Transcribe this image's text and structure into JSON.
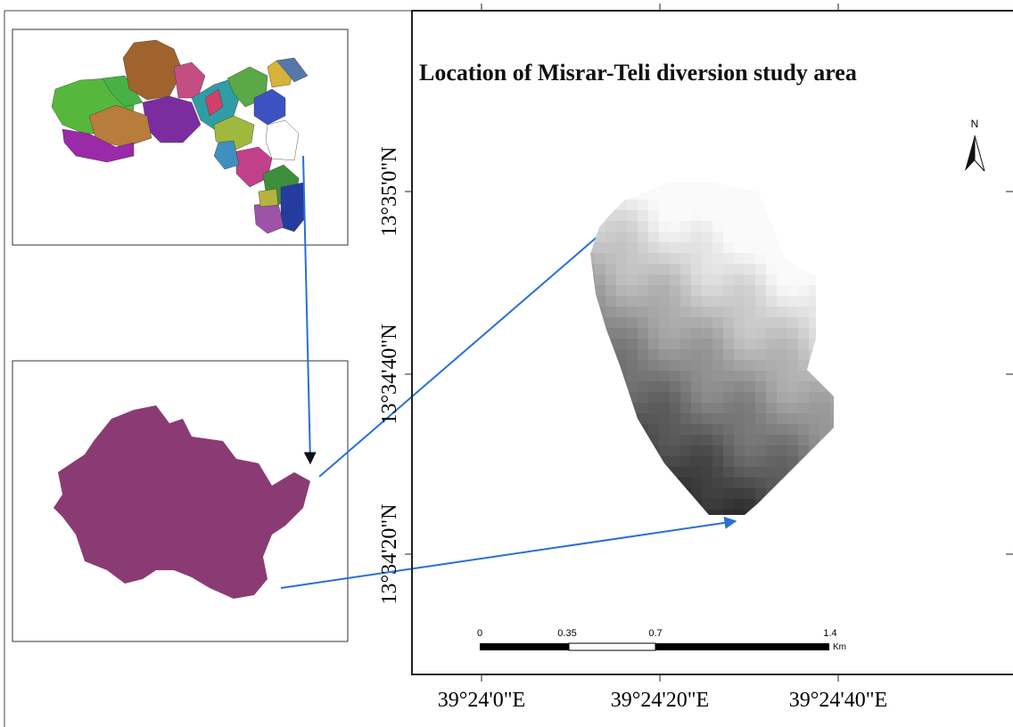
{
  "map": {
    "title": "Location of Misrar-Teli diversion study area",
    "north": "N",
    "lat_labels": [
      "13°35'0\"N",
      "13°34'40\"N",
      "13°34'20\"N"
    ],
    "lon_labels": [
      "39°24'0\"E",
      "39°24'20\"E",
      "39°24'40\"E"
    ],
    "scale_bar": {
      "labels": [
        "0",
        "0.35",
        "0.7",
        "1.4"
      ],
      "unit": "Km"
    }
  }
}
